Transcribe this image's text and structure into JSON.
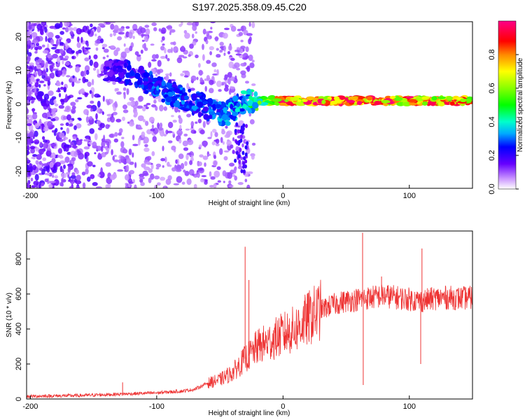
{
  "title": "S197.2025.358.09.45.C20",
  "chart_data": [
    {
      "type": "heatmap",
      "xlabel": "Height of straight line (km)",
      "ylabel": "Frequency (Hz)",
      "xlim": [
        -203,
        150
      ],
      "ylim": [
        -25,
        24.5
      ],
      "xticks": [
        -200,
        -100,
        0,
        100
      ],
      "xtick_labels": [
        "-200",
        "-100",
        "0",
        "100"
      ],
      "yticks": [
        -20,
        -10,
        0,
        10,
        20
      ],
      "ytick_labels": [
        "-20",
        "-10",
        "0",
        "10",
        "20"
      ],
      "colorbar": {
        "label": "Normalized spectral amplitude",
        "range": [
          0,
          1
        ],
        "ticks": [
          0.0,
          0.2,
          0.4,
          0.6,
          0.8
        ],
        "tick_labels": [
          "0.0",
          "0.2",
          "0.4",
          "0.6",
          "0.8"
        ],
        "colormap": "rainbow (white-violet-blue-cyan-green-yellow-red-magenta)"
      },
      "ridge": [
        {
          "x": -135,
          "f": 10,
          "amp": 0.2
        },
        {
          "x": -120,
          "f": 9,
          "amp": 0.25
        },
        {
          "x": -100,
          "f": 5,
          "amp": 0.3
        },
        {
          "x": -80,
          "f": 2,
          "amp": 0.3
        },
        {
          "x": -60,
          "f": -1,
          "amp": 0.3
        },
        {
          "x": -45,
          "f": -3,
          "amp": 0.35
        },
        {
          "x": -30,
          "f": 1,
          "amp": 0.4
        },
        {
          "x": -20,
          "f": 1,
          "amp": 0.55
        },
        {
          "x": 0,
          "f": 1,
          "amp": 0.9
        },
        {
          "x": 50,
          "f": 1,
          "amp": 0.95
        },
        {
          "x": 100,
          "f": 1,
          "amp": 0.9
        },
        {
          "x": 150,
          "f": 1,
          "amp": 0.85
        }
      ]
    },
    {
      "type": "line",
      "xlabel": "Height of straight line (km)",
      "ylabel": "SNR (10 * v/v)",
      "xlim": [
        -203,
        150
      ],
      "ylim": [
        0,
        960
      ],
      "xticks": [
        -200,
        -100,
        0,
        100
      ],
      "xtick_labels": [
        "-200",
        "-100",
        "0",
        "100"
      ],
      "yticks": [
        0,
        200,
        400,
        600,
        800
      ],
      "ytick_labels": [
        "0",
        "200",
        "400",
        "600",
        "800"
      ],
      "series": [
        {
          "name": "SNR",
          "color": "#ee3333",
          "x": [
            -203,
            -180,
            -160,
            -140,
            -120,
            -100,
            -80,
            -70,
            -60,
            -50,
            -40,
            -30,
            -25,
            -20,
            -10,
            0,
            10,
            20,
            30,
            40,
            50,
            60,
            70,
            80,
            90,
            100,
            110,
            120,
            130,
            140,
            150
          ],
          "y": [
            15,
            18,
            20,
            25,
            30,
            35,
            45,
            55,
            90,
            110,
            150,
            230,
            260,
            300,
            330,
            370,
            400,
            460,
            510,
            540,
            560,
            570,
            580,
            590,
            580,
            570,
            560,
            575,
            580,
            575,
            580
          ]
        }
      ],
      "spikes": [
        {
          "x": -30,
          "y": 870
        },
        {
          "x": -27,
          "y": 680
        },
        {
          "x": 63,
          "y": 950
        },
        {
          "x": 63.5,
          "y": 80
        },
        {
          "x": 110,
          "y": 860
        },
        {
          "x": 109,
          "y": 200
        },
        {
          "x": -127,
          "y": 95
        },
        {
          "x": 78,
          "y": 700
        }
      ]
    }
  ]
}
